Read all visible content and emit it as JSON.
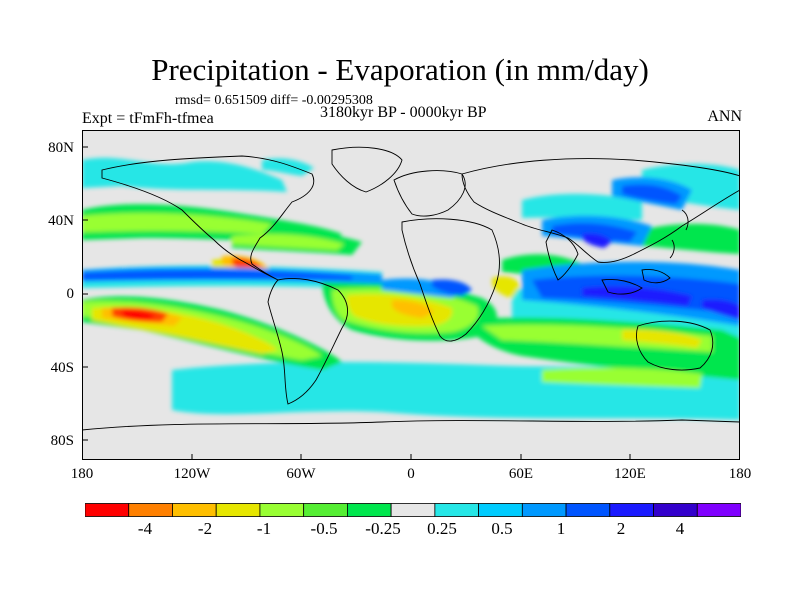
{
  "title": "Precipitation - Evaporation (in mm/day)",
  "stats": "rmsd= 0.651509 diff= -0.00295308",
  "experiment": "Expt = tFmFh-tfmea",
  "period": "3180kyr BP - 0000kyr BP",
  "season": "ANN",
  "map": {
    "lat_labels": [
      "80N",
      "40N",
      "0",
      "40S",
      "80S"
    ],
    "lon_labels": [
      "180",
      "120W",
      "60W",
      "0",
      "60E",
      "120E",
      "180"
    ],
    "land_color": "#e6e6e6",
    "coastline_color": "#000000"
  },
  "colorbar": {
    "colors": [
      "#ff0000",
      "#ff8000",
      "#ffbf00",
      "#e6e600",
      "#99ff33",
      "#55ee33",
      "#00e64d",
      "#e6e6e6",
      "#26e6e6",
      "#00ccff",
      "#0099ff",
      "#0055ff",
      "#1a1aff",
      "#3300cc",
      "#8000ff"
    ],
    "tick_labels": [
      "-4",
      "-2",
      "-1",
      "-0.5",
      "-0.25",
      "0.25",
      "0.5",
      "1",
      "2",
      "4"
    ]
  }
}
